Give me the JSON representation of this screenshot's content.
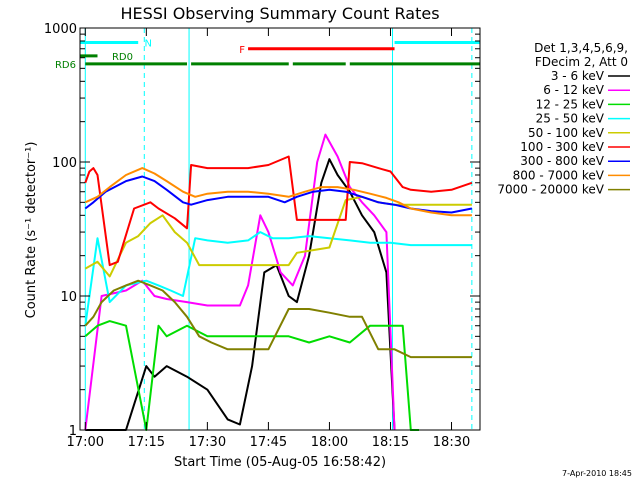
{
  "chart_data": {
    "type": "line",
    "title": "HESSI Observing Summary Count Rates",
    "xlabel": "Start Time (05-Aug-05 16:58:42)",
    "ylabel": "Count Rate (s⁻¹ detector⁻¹)",
    "yscale": "log",
    "ylim": [
      1,
      1000
    ],
    "xlim": [
      "16:58:42",
      "18:37:00"
    ],
    "x_ticks": [
      "17:00",
      "17:15",
      "17:30",
      "17:45",
      "18:00",
      "18:15",
      "18:30"
    ],
    "y_ticks": [
      "1",
      "10",
      "100",
      "1000"
    ],
    "grid": false,
    "legend_position": "right",
    "legend_header": [
      "Det 1,3,4,5,6,9,",
      "FDecim 2, Att 0"
    ],
    "series": [
      {
        "name": "3 - 6 keV",
        "color": "#000000",
        "x": [
          "17:00",
          "17:02",
          "17:05",
          "17:10",
          "17:15",
          "17:17",
          "17:20",
          "17:25",
          "17:30",
          "17:35",
          "17:38",
          "17:41",
          "17:44",
          "17:47",
          "17:50",
          "17:52",
          "17:55",
          "17:58",
          "18:00",
          "18:02",
          "18:05",
          "18:08",
          "18:11",
          "18:14",
          "18:16"
        ],
        "values": [
          0,
          0,
          0,
          0,
          3,
          2.5,
          3,
          2.5,
          2,
          1.2,
          1.1,
          3,
          15,
          17,
          10,
          9,
          20,
          70,
          105,
          80,
          60,
          40,
          30,
          15,
          0
        ]
      },
      {
        "name": "6 - 12 keV",
        "color": "#ff00ff",
        "x": [
          "17:00",
          "17:04",
          "17:10",
          "17:14",
          "17:17",
          "17:20",
          "17:25",
          "17:30",
          "17:35",
          "17:38",
          "17:40",
          "17:43",
          "17:45",
          "17:48",
          "17:51",
          "17:54",
          "17:57",
          "17:59",
          "18:02",
          "18:05",
          "18:08",
          "18:11",
          "18:14",
          "18:16"
        ],
        "values": [
          0,
          10,
          11,
          13,
          10,
          9.5,
          9,
          8.5,
          8.5,
          8.5,
          12,
          40,
          30,
          15,
          12,
          20,
          100,
          160,
          110,
          65,
          50,
          40,
          30,
          0
        ]
      },
      {
        "name": "12 - 25 keV",
        "color": "#00dd00",
        "x": [
          "17:00",
          "17:03",
          "17:06",
          "17:10",
          "17:15",
          "17:18",
          "17:20",
          "17:25",
          "17:30",
          "17:35",
          "17:40",
          "17:45",
          "17:50",
          "17:55",
          "18:00",
          "18:05",
          "18:10",
          "18:15",
          "18:18",
          "18:20",
          "18:22"
        ],
        "values": [
          5,
          6,
          6.5,
          6,
          1,
          6,
          5,
          6,
          5,
          5,
          5,
          5,
          5,
          4.5,
          5,
          4.5,
          6,
          6,
          6,
          0,
          0
        ]
      },
      {
        "name": "25 - 50 keV",
        "color": "#00ffff",
        "x": [
          "17:00",
          "17:03",
          "17:06",
          "17:10",
          "17:15",
          "17:18",
          "17:21",
          "17:24",
          "17:27",
          "17:30",
          "17:35",
          "17:40",
          "17:43",
          "17:46",
          "17:50",
          "17:55",
          "18:00",
          "18:05",
          "18:10",
          "18:15",
          "18:20",
          "18:25",
          "18:30",
          "18:35"
        ],
        "values": [
          6,
          27,
          9,
          12,
          13,
          12,
          11,
          10,
          27,
          26,
          25,
          26,
          30,
          27,
          27,
          28,
          27,
          26,
          25,
          25,
          24,
          24,
          24,
          24
        ]
      },
      {
        "name": "50 - 100 keV",
        "color": "#cccc00",
        "x": [
          "17:00",
          "17:03",
          "17:06",
          "17:10",
          "17:13",
          "17:16",
          "17:19",
          "17:22",
          "17:25",
          "17:28",
          "17:32",
          "17:36",
          "17:40",
          "17:45",
          "17:50",
          "17:52",
          "17:56",
          "18:00",
          "18:04",
          "18:08",
          "18:12",
          "18:16",
          "18:20",
          "18:25",
          "18:30",
          "18:35"
        ],
        "values": [
          16,
          18,
          14,
          25,
          28,
          35,
          40,
          30,
          25,
          17,
          17,
          17,
          17,
          17,
          17,
          21,
          22,
          23,
          52,
          55,
          50,
          48,
          48,
          48,
          48,
          48
        ]
      },
      {
        "name": "100 - 300 keV",
        "color": "#ff0000",
        "x": [
          "17:00",
          "17:01",
          "17:02",
          "17:03",
          "17:06",
          "17:08",
          "17:12",
          "17:16",
          "17:18",
          "17:22",
          "17:25",
          "17:26",
          "17:30",
          "17:35",
          "17:40",
          "17:45",
          "17:50",
          "17:52",
          "17:55",
          "18:00",
          "18:04",
          "18:05",
          "18:08",
          "18:12",
          "18:15",
          "18:18",
          "18:20",
          "18:25",
          "18:30",
          "18:35"
        ],
        "values": [
          70,
          85,
          90,
          80,
          17,
          18,
          45,
          50,
          45,
          38,
          32,
          95,
          90,
          90,
          90,
          95,
          110,
          37,
          37,
          37,
          37,
          100,
          98,
          90,
          85,
          65,
          62,
          60,
          62,
          70
        ]
      },
      {
        "name": "300 - 800 keV",
        "color": "#0000ff",
        "x": [
          "17:00",
          "17:02",
          "17:05",
          "17:10",
          "17:14",
          "17:17",
          "17:20",
          "17:24",
          "17:26",
          "17:30",
          "17:35",
          "17:40",
          "17:45",
          "17:49",
          "17:52",
          "17:56",
          "18:00",
          "18:04",
          "18:08",
          "18:12",
          "18:16",
          "18:20",
          "18:25",
          "18:30",
          "18:35"
        ],
        "values": [
          45,
          50,
          60,
          72,
          78,
          72,
          62,
          50,
          48,
          52,
          55,
          55,
          55,
          50,
          55,
          60,
          62,
          60,
          55,
          50,
          48,
          45,
          43,
          42,
          45
        ]
      },
      {
        "name": "800 - 7000 keV",
        "color": "#ff8c00",
        "x": [
          "17:00",
          "17:03",
          "17:06",
          "17:10",
          "17:14",
          "17:17",
          "17:20",
          "17:24",
          "17:27",
          "17:30",
          "17:35",
          "17:40",
          "17:45",
          "17:50",
          "17:54",
          "17:58",
          "18:02",
          "18:06",
          "18:10",
          "18:14",
          "18:17",
          "18:20",
          "18:25",
          "18:30",
          "18:35"
        ],
        "values": [
          50,
          55,
          65,
          80,
          90,
          82,
          72,
          60,
          55,
          58,
          60,
          60,
          58,
          55,
          60,
          65,
          65,
          62,
          58,
          54,
          50,
          45,
          42,
          40,
          40
        ]
      },
      {
        "name": "7000 - 20000 keV",
        "color": "#808000",
        "x": [
          "17:00",
          "17:02",
          "17:04",
          "17:07",
          "17:10",
          "17:13",
          "17:16",
          "17:19",
          "17:22",
          "17:25",
          "17:28",
          "17:31",
          "17:35",
          "17:40",
          "17:45",
          "17:50",
          "17:55",
          "18:00",
          "18:05",
          "18:08",
          "18:12",
          "18:16",
          "18:20",
          "18:25",
          "18:30",
          "18:35"
        ],
        "values": [
          6,
          7,
          9,
          11,
          12,
          13,
          12,
          11,
          9,
          7,
          5,
          4.5,
          4,
          4,
          4,
          8,
          8,
          7.5,
          7,
          7,
          4,
          4,
          3.5,
          3.5,
          3.5,
          3.5
        ]
      }
    ],
    "annotations": {
      "markers": [
        {
          "label": "N",
          "color": "#00ffff",
          "level": 780,
          "segments": [
            [
              "16:58:42",
              "17:13:00"
            ],
            [
              "18:16:00",
              "18:37:00"
            ]
          ]
        },
        {
          "label": "RD0",
          "color": "#008000",
          "level": 620,
          "segments": [
            [
              "16:58:42",
              "17:03:00"
            ]
          ]
        },
        {
          "label": "RD6",
          "color": "#008000",
          "level": 540,
          "segments": [
            [
              "17:00:00",
              "17:25:00"
            ],
            [
              "17:26:00",
              "17:50:00"
            ],
            [
              "17:51:00",
              "18:04:00"
            ],
            [
              "18:05:00",
              "18:37:00"
            ]
          ]
        },
        {
          "label": "F",
          "color": "#ff0000",
          "level": 700,
          "segments": [
            [
              "17:40:00",
              "18:16:00"
            ]
          ]
        }
      ],
      "vertical_lines": [
        {
          "time": "17:00:00",
          "color": "#00ffff",
          "style": "solid"
        },
        {
          "time": "17:14:30",
          "color": "#00ffff",
          "style": "dashed"
        },
        {
          "time": "17:25:30",
          "color": "#00ffff",
          "style": "solid"
        },
        {
          "time": "18:15:30",
          "color": "#00ffff",
          "style": "solid"
        },
        {
          "time": "18:35:00",
          "color": "#00ffff",
          "style": "dashed"
        }
      ]
    }
  },
  "footer": {
    "timestamp": "7-Apr-2010 18:45"
  }
}
